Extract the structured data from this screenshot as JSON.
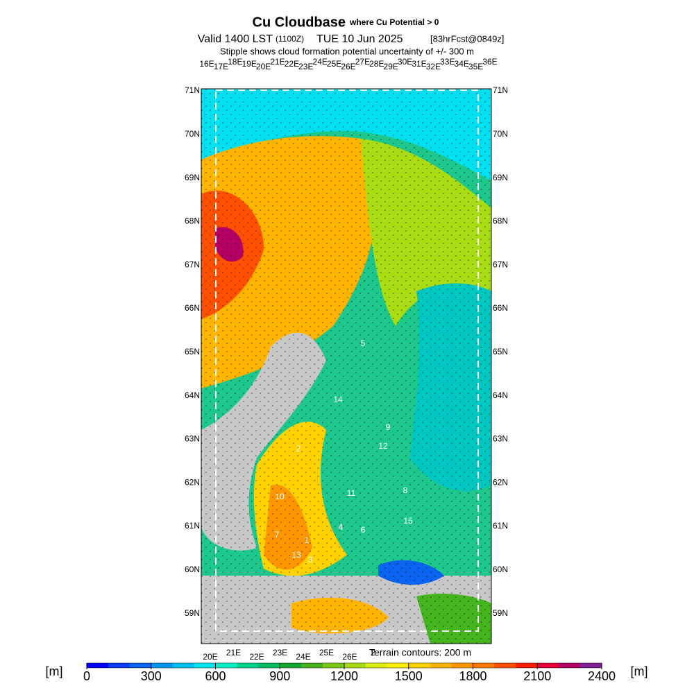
{
  "header": {
    "title": "Cu Cloudbase",
    "title_note": "where Cu Potential > 0",
    "valid": "Valid 1400 LST",
    "utc": "(1100Z)",
    "date": "TUE 10 Jun 2025",
    "forecast": "[83hrFcst@0849z]",
    "stipple_note": "Stipple shows cloud formation potential uncertainty of +/- 300 m"
  },
  "map": {
    "lat_labels": [
      "71N",
      "70N",
      "69N",
      "68N",
      "67N",
      "66N",
      "65N",
      "64N",
      "63N",
      "62N",
      "61N",
      "60N",
      "59N"
    ],
    "lon_labels_top": [
      "16E",
      "17E",
      "18E",
      "19E",
      "20E",
      "21E",
      "22E",
      "23E",
      "24E",
      "25E",
      "26E",
      "27E",
      "28E",
      "29E",
      "30E",
      "31E",
      "32E",
      "33E",
      "34E",
      "35E",
      "36E"
    ],
    "lon_labels_bottom": [
      "20E",
      "21E",
      "22E",
      "23E",
      "24E",
      "25E",
      "26E",
      "2"
    ],
    "stations": [
      "5",
      "14",
      "9",
      "12",
      "2",
      "10",
      "11",
      "8",
      "15",
      "4",
      "6",
      "7",
      "1",
      "13",
      "3"
    ],
    "terrain_note": "Terrain contours: 200 m"
  },
  "colorbar": {
    "unit": "[m]",
    "range": [
      0,
      2400
    ],
    "ticks": [
      0,
      300,
      600,
      900,
      1200,
      1500,
      1800,
      2100,
      2400
    ],
    "colors": [
      "#0000ff",
      "#0a3cf5",
      "#0a64f0",
      "#0096f0",
      "#00bef0",
      "#00e6f0",
      "#00f0c8",
      "#00d28c",
      "#00be64",
      "#14aa32",
      "#46b41e",
      "#78c814",
      "#aadc14",
      "#dcf014",
      "#fff000",
      "#ffd200",
      "#ffb400",
      "#ff9600",
      "#ff7800",
      "#ff5000",
      "#ff1e00",
      "#e6003c",
      "#b40064",
      "#821e96"
    ]
  }
}
